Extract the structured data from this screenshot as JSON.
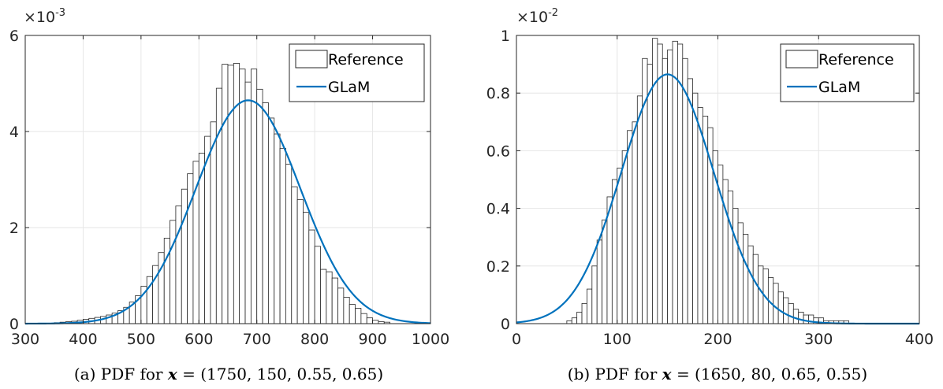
{
  "colors": {
    "bar_fill": "#ffffff",
    "bar_edge": "#262626",
    "curve": "#0072BD",
    "grid": "#e6e6e6"
  },
  "chart_data": [
    {
      "type": "bar",
      "panel": "a",
      "caption": {
        "prefix": "(a) PDF for",
        "var": "x",
        "eq": "= (1750, 150, 0.55, 0.65)"
      },
      "exponent_label": {
        "base": "×10",
        "power": "-3"
      },
      "xlim": [
        300,
        1000
      ],
      "ylim": [
        0,
        6
      ],
      "xticks": [
        "300",
        "400",
        "500",
        "600",
        "700",
        "800",
        "900",
        "1000"
      ],
      "yticks": [
        "0",
        "2",
        "4",
        "6"
      ],
      "grid": true,
      "legend": {
        "position": "top-right",
        "entries": [
          "Reference",
          "GLaM"
        ]
      },
      "series": [
        {
          "name": "Reference",
          "kind": "histogram",
          "bin_width": 10,
          "bin_starts": [
            340,
            350,
            360,
            370,
            380,
            390,
            400,
            410,
            420,
            430,
            440,
            450,
            460,
            470,
            480,
            490,
            500,
            510,
            520,
            530,
            540,
            550,
            560,
            570,
            580,
            590,
            600,
            610,
            620,
            630,
            640,
            650,
            660,
            670,
            680,
            690,
            700,
            710,
            720,
            730,
            740,
            750,
            760,
            770,
            780,
            790,
            800,
            810,
            820,
            830,
            840,
            850,
            860,
            870,
            880,
            890,
            900,
            910,
            920
          ],
          "values": [
            0.01,
            0.02,
            0.03,
            0.04,
            0.05,
            0.07,
            0.09,
            0.11,
            0.13,
            0.15,
            0.18,
            0.22,
            0.27,
            0.34,
            0.45,
            0.58,
            0.78,
            0.98,
            1.21,
            1.48,
            1.78,
            2.15,
            2.45,
            2.8,
            3.12,
            3.38,
            3.55,
            3.9,
            4.2,
            4.9,
            5.4,
            5.38,
            5.42,
            5.3,
            5.03,
            5.3,
            4.88,
            4.6,
            4.28,
            3.95,
            3.65,
            3.32,
            2.85,
            2.58,
            2.32,
            1.95,
            1.61,
            1.13,
            1.08,
            0.95,
            0.74,
            0.55,
            0.4,
            0.32,
            0.21,
            0.12,
            0.07,
            0.04,
            0.03
          ]
        },
        {
          "name": "GLaM",
          "kind": "curve",
          "mean": 685,
          "std": 90,
          "peak": 4.65
        }
      ]
    },
    {
      "type": "bar",
      "panel": "b",
      "caption": {
        "prefix": "(b) PDF for",
        "var": "x",
        "eq": "= (1650, 80, 0.65, 0.55)"
      },
      "exponent_label": {
        "base": "×10",
        "power": "-2"
      },
      "xlim": [
        0,
        400
      ],
      "ylim": [
        0,
        1
      ],
      "xticks": [
        "0",
        "100",
        "200",
        "300",
        "400"
      ],
      "yticks": [
        "0",
        "0.2",
        "0.4",
        "0.6",
        "0.8",
        "1"
      ],
      "grid": true,
      "legend": {
        "position": "top-right",
        "entries": [
          "Reference",
          "GLaM"
        ]
      },
      "series": [
        {
          "name": "Reference",
          "kind": "histogram",
          "bin_width": 5,
          "bin_starts": [
            50,
            55,
            60,
            65,
            70,
            75,
            80,
            85,
            90,
            95,
            100,
            105,
            110,
            115,
            120,
            125,
            130,
            135,
            140,
            145,
            150,
            155,
            160,
            165,
            170,
            175,
            180,
            185,
            190,
            195,
            200,
            205,
            210,
            215,
            220,
            225,
            230,
            235,
            240,
            245,
            250,
            255,
            260,
            265,
            270,
            275,
            280,
            285,
            290,
            295,
            300,
            305,
            310,
            315,
            320,
            325
          ],
          "values": [
            0.01,
            0.02,
            0.04,
            0.07,
            0.12,
            0.2,
            0.29,
            0.36,
            0.44,
            0.5,
            0.54,
            0.6,
            0.67,
            0.7,
            0.79,
            0.92,
            0.9,
            0.99,
            0.97,
            0.92,
            0.95,
            0.98,
            0.97,
            0.92,
            0.85,
            0.8,
            0.75,
            0.72,
            0.68,
            0.6,
            0.55,
            0.5,
            0.46,
            0.4,
            0.35,
            0.31,
            0.27,
            0.24,
            0.2,
            0.19,
            0.16,
            0.14,
            0.11,
            0.09,
            0.07,
            0.05,
            0.04,
            0.03,
            0.03,
            0.02,
            0.02,
            0.01,
            0.01,
            0.01,
            0.01,
            0.01
          ]
        },
        {
          "name": "GLaM",
          "kind": "curve",
          "mean": 150,
          "std": 46,
          "peak": 0.865
        }
      ]
    }
  ]
}
